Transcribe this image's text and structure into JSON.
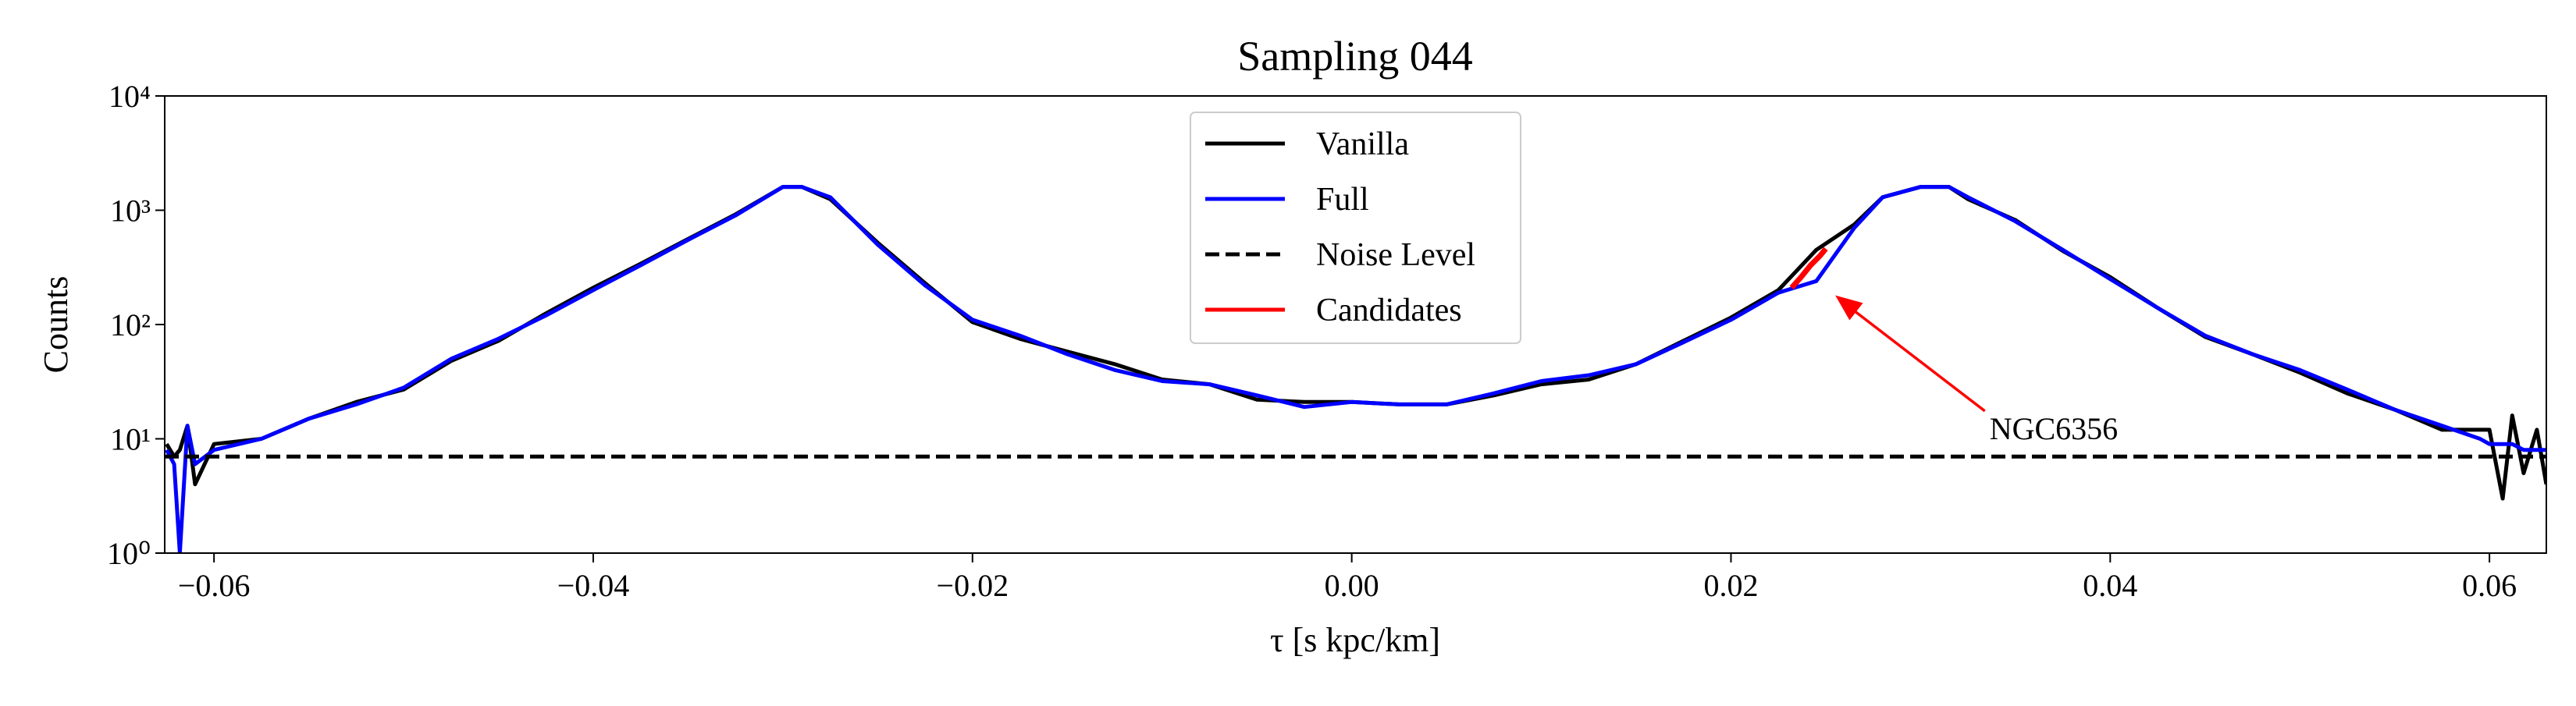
{
  "chart_data": {
    "type": "line",
    "title": "Sampling 044",
    "xlabel": "τ [s kpc/km]",
    "ylabel": "Counts",
    "xlim": [
      -0.0626,
      0.063
    ],
    "ylim": [
      1,
      10000
    ],
    "yscale": "log",
    "xticks": [
      {
        "value": -0.06,
        "label": "−0.06"
      },
      {
        "value": -0.04,
        "label": "−0.04"
      },
      {
        "value": -0.02,
        "label": "−0.02"
      },
      {
        "value": 0,
        "label": "0.00"
      },
      {
        "value": 0.02,
        "label": "0.02"
      },
      {
        "value": 0.04,
        "label": "0.04"
      },
      {
        "value": 0.06,
        "label": "0.06"
      }
    ],
    "yticks": [
      {
        "value": 1,
        "label": "10⁰"
      },
      {
        "value": 10,
        "label": "10¹"
      },
      {
        "value": 100,
        "label": "10²"
      },
      {
        "value": 1000,
        "label": "10³"
      },
      {
        "value": 10000,
        "label": "10⁴"
      }
    ],
    "legend": "upper center",
    "series": [
      {
        "name": "Vanilla",
        "color": "#000000",
        "dash": false,
        "x": [
          -0.0625,
          -0.0621,
          -0.0618,
          -0.0614,
          -0.061,
          -0.06,
          -0.0575,
          -0.055,
          -0.0525,
          -0.05,
          -0.0475,
          -0.045,
          -0.0425,
          -0.04,
          -0.0375,
          -0.035,
          -0.0325,
          -0.03,
          -0.029,
          -0.0275,
          -0.025,
          -0.0225,
          -0.02,
          -0.0175,
          -0.015,
          -0.0125,
          -0.01,
          -0.0075,
          -0.005,
          -0.0025,
          0,
          0.0025,
          0.005,
          0.0075,
          0.01,
          0.0125,
          0.015,
          0.0175,
          0.02,
          0.0225,
          0.0245,
          0.0265,
          0.028,
          0.03,
          0.0315,
          0.0325,
          0.035,
          0.0375,
          0.04,
          0.0425,
          0.045,
          0.0475,
          0.05,
          0.0525,
          0.055,
          0.0575,
          0.0595,
          0.06,
          0.0607,
          0.0612,
          0.0618,
          0.0625,
          0.063
        ],
        "values": [
          9,
          7,
          8,
          13,
          4,
          9,
          10,
          15,
          21,
          27,
          48,
          72,
          125,
          210,
          340,
          560,
          920,
          1600,
          1600,
          1250,
          520,
          230,
          105,
          75,
          58,
          45,
          33,
          30,
          22,
          21,
          21,
          20,
          20,
          24,
          30,
          33,
          45,
          72,
          115,
          200,
          450,
          750,
          1300,
          1600,
          1600,
          1250,
          820,
          440,
          260,
          140,
          78,
          55,
          38,
          25,
          18,
          12,
          12,
          12,
          3,
          16,
          5,
          12,
          4
        ]
      },
      {
        "name": "Full",
        "color": "#0000ff",
        "dash": false,
        "x": [
          -0.0625,
          -0.0621,
          -0.0618,
          -0.0614,
          -0.061,
          -0.06,
          -0.0575,
          -0.055,
          -0.0525,
          -0.05,
          -0.0475,
          -0.045,
          -0.0425,
          -0.04,
          -0.0375,
          -0.035,
          -0.0325,
          -0.03,
          -0.029,
          -0.0275,
          -0.025,
          -0.0225,
          -0.02,
          -0.0175,
          -0.015,
          -0.0125,
          -0.01,
          -0.0075,
          -0.005,
          -0.0025,
          0,
          0.0025,
          0.005,
          0.0075,
          0.01,
          0.0125,
          0.015,
          0.0175,
          0.02,
          0.0225,
          0.0245,
          0.0265,
          0.028,
          0.03,
          0.0315,
          0.0325,
          0.035,
          0.0375,
          0.04,
          0.0425,
          0.045,
          0.0475,
          0.05,
          0.0525,
          0.055,
          0.0575,
          0.0595,
          0.06,
          0.0607,
          0.0612,
          0.0618,
          0.0625,
          0.063
        ],
        "values": [
          8,
          6,
          1,
          13,
          6,
          8,
          10,
          15,
          20,
          28,
          50,
          75,
          120,
          200,
          330,
          550,
          900,
          1600,
          1600,
          1300,
          500,
          220,
          110,
          80,
          55,
          40,
          32,
          30,
          24,
          19,
          21,
          20,
          20,
          25,
          32,
          36,
          45,
          70,
          110,
          190,
          240,
          700,
          1300,
          1600,
          1600,
          1300,
          800,
          450,
          250,
          140,
          80,
          55,
          40,
          27,
          18,
          13,
          10,
          9,
          9,
          9,
          8,
          8,
          8
        ]
      },
      {
        "name": "Noise Level",
        "color": "#000000",
        "dash": true,
        "x": [
          -0.0626,
          0.063
        ],
        "values": [
          7,
          7
        ]
      },
      {
        "name": "Candidates",
        "color": "#ff0000",
        "dash": false,
        "x": [
          0.0232,
          0.0237,
          0.0242,
          0.0247,
          0.025
        ],
        "values": [
          210,
          260,
          330,
          400,
          460
        ]
      }
    ],
    "annotation": {
      "text": "NGC6356",
      "x": 0.0255,
      "y": 180,
      "text_x": 0.0338,
      "text_y": 12,
      "color": "#ff0000"
    }
  }
}
